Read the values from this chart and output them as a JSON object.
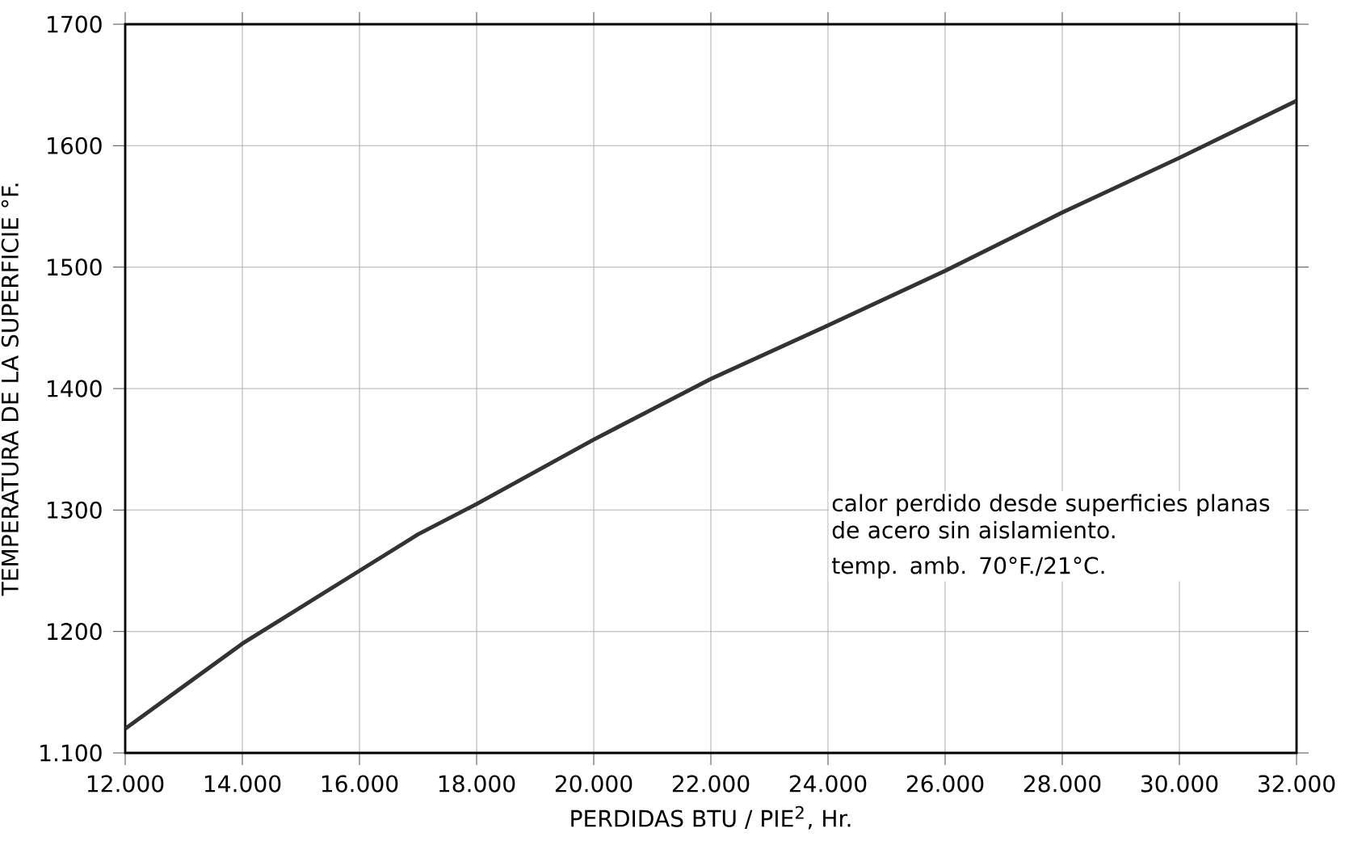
{
  "chart_data": {
    "type": "line",
    "xlabel": "PERDIDAS BTU / PIE$^{2}$, Hr.",
    "ylabel": "TEMPERATURA DE LA SUPERFICIE °F.",
    "x": [
      12000,
      14000,
      16000,
      17000,
      18000,
      20000,
      22000,
      24000,
      26000,
      28000,
      30000,
      32000
    ],
    "series": [
      {
        "color": "#333333",
        "values": [
          1120,
          1190,
          1250,
          1280,
          1305,
          1358,
          1408,
          1452,
          1497,
          1545,
          1590,
          1637
        ]
      }
    ],
    "xlim": [
      12000,
      32000
    ],
    "ylim": [
      1100,
      1700
    ],
    "xticks": [
      {
        "value": 12000,
        "label": "12.000"
      },
      {
        "value": 14000,
        "label": "14.000"
      },
      {
        "value": 16000,
        "label": "16.000"
      },
      {
        "value": 18000,
        "label": "18.000"
      },
      {
        "value": 20000,
        "label": "20.000"
      },
      {
        "value": 22000,
        "label": "22.000"
      },
      {
        "value": 24000,
        "label": "24.000"
      },
      {
        "value": 26000,
        "label": "26.000"
      },
      {
        "value": 28000,
        "label": "28.000"
      },
      {
        "value": 30000,
        "label": "30.000"
      },
      {
        "value": 32000,
        "label": "32.000"
      }
    ],
    "yticks": [
      {
        "value": 1100,
        "label": "1.100"
      },
      1200,
      1300,
      1400,
      1500,
      1600,
      1700
    ],
    "annotations": [
      "calor perdido desde superficies planas de acero sin aislamiento.",
      "temp. amb. 70°F./21°C."
    ],
    "grid": true,
    "marker": "none",
    "line_style": "solid"
  }
}
